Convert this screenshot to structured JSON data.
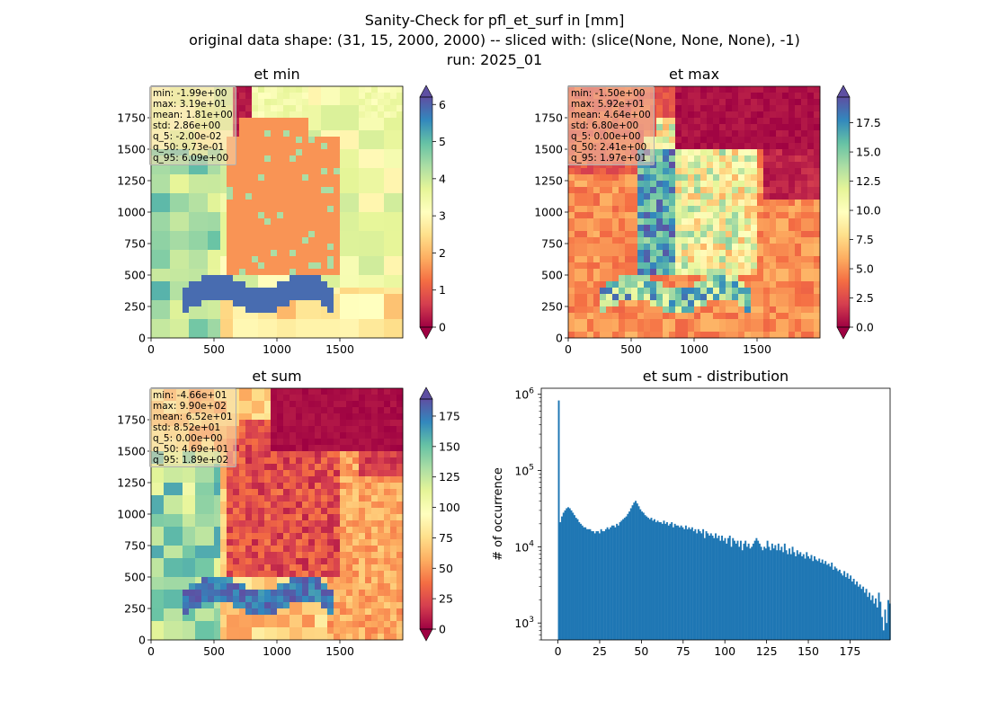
{
  "figure": {
    "title_lines": [
      "Sanity-Check for pfl_et_surf in [mm]",
      "original data shape: (31, 15, 2000, 2000) -- sliced with: (slice(None, None, None), -1)",
      "run: 2025_01"
    ]
  },
  "colors": {
    "spectral_stops": [
      "#9e0142",
      "#d53e4f",
      "#f46d43",
      "#fdae61",
      "#fee08b",
      "#ffffbf",
      "#e6f598",
      "#abdda4",
      "#66c2a5",
      "#3288bd",
      "#5e4fa2"
    ],
    "hist_bar": "#1f77b4",
    "stats_box_bg": "#f5deb3"
  },
  "chart_data": [
    {
      "type": "heatmap",
      "title": "et min",
      "colormap": "Spectral",
      "x_ticks": [
        "0",
        "500",
        "1000",
        "1500"
      ],
      "y_ticks": [
        "0",
        "250",
        "500",
        "750",
        "1000",
        "1250",
        "1500",
        "1750"
      ],
      "x_range": [
        0,
        2000
      ],
      "y_range": [
        0,
        2000
      ],
      "colorbar": {
        "range": [
          0,
          6.2
        ],
        "ticks": [
          "0",
          "1",
          "2",
          "3",
          "4",
          "5",
          "6"
        ],
        "extend": "both"
      },
      "stats": [
        "min: -1.99e+00",
        "max: 3.19e+01",
        "mean: 1.81e+00",
        "std: 2.86e+00",
        "q_5: -2.00e-02",
        "q_50: 9.73e-01",
        "q_95: 6.09e+00"
      ]
    },
    {
      "type": "heatmap",
      "title": "et max",
      "colormap": "Spectral",
      "x_ticks": [
        "0",
        "500",
        "1000",
        "1500"
      ],
      "y_ticks": [
        "0",
        "250",
        "500",
        "750",
        "1000",
        "1250",
        "1500",
        "1750"
      ],
      "x_range": [
        0,
        2000
      ],
      "y_range": [
        0,
        2000
      ],
      "colorbar": {
        "range": [
          0,
          19.7
        ],
        "ticks": [
          "0.0",
          "2.5",
          "5.0",
          "7.5",
          "10.0",
          "12.5",
          "15.0",
          "17.5"
        ],
        "extend": "both"
      },
      "stats": [
        "min: -1.50e+00",
        "max: 5.92e+01",
        "mean: 4.64e+00",
        "std: 6.80e+00",
        "q_5: 0.00e+00",
        "q_50: 2.41e+00",
        "q_95: 1.97e+01"
      ]
    },
    {
      "type": "heatmap",
      "title": "et sum",
      "colormap": "Spectral",
      "x_ticks": [
        "0",
        "500",
        "1000",
        "1500"
      ],
      "y_ticks": [
        "0",
        "250",
        "500",
        "750",
        "1000",
        "1250",
        "1500",
        "1750"
      ],
      "x_range": [
        0,
        2000
      ],
      "y_range": [
        0,
        2000
      ],
      "colorbar": {
        "range": [
          0,
          189
        ],
        "ticks": [
          "0",
          "25",
          "50",
          "75",
          "100",
          "125",
          "150",
          "175"
        ],
        "extend": "both"
      },
      "stats": [
        "min: -4.66e+01",
        "max: 9.90e+02",
        "mean: 6.52e+01",
        "std: 8.52e+01",
        "q_5: 0.00e+00",
        "q_50: 4.69e+01",
        "q_95: 1.89e+02"
      ]
    },
    {
      "type": "bar",
      "title": "et sum - distribution",
      "ylabel": "# of occurrence",
      "yscale": "log",
      "xlim": [
        -10,
        199
      ],
      "ylim": [
        600,
        1200000
      ],
      "x_ticks": [
        "0",
        "25",
        "50",
        "75",
        "100",
        "125",
        "150",
        "175"
      ],
      "y_ticks": [
        "10^3",
        "10^4",
        "10^5",
        "10^6"
      ],
      "bin_start": 0,
      "bin_width": 0.94,
      "values": [
        830000,
        21000,
        25000,
        28000,
        30000,
        32000,
        33000,
        32000,
        30000,
        28000,
        26000,
        24000,
        23000,
        21000,
        20000,
        19000,
        18000,
        18000,
        17000,
        17000,
        17000,
        16000,
        16000,
        15000,
        16000,
        16000,
        15000,
        17000,
        16000,
        16000,
        17000,
        18000,
        17000,
        18000,
        19000,
        19000,
        18000,
        20000,
        19000,
        21000,
        22000,
        23000,
        24000,
        25000,
        27000,
        29000,
        32000,
        35000,
        38000,
        40000,
        37000,
        34000,
        31000,
        29000,
        28000,
        26000,
        25000,
        24000,
        23000,
        24000,
        22000,
        23000,
        21000,
        22000,
        21000,
        21000,
        20000,
        22000,
        20000,
        21000,
        19000,
        20000,
        21000,
        18000,
        20000,
        19000,
        19000,
        18000,
        19000,
        18000,
        17000,
        19000,
        17000,
        18000,
        17000,
        18000,
        16000,
        17000,
        15000,
        17000,
        16000,
        15000,
        17000,
        13000,
        16000,
        15000,
        14000,
        15000,
        14000,
        13000,
        15000,
        13000,
        14000,
        12000,
        14000,
        12000,
        13000,
        11000,
        13000,
        14000,
        10000,
        13000,
        12000,
        11000,
        12000,
        10000,
        12000,
        9000,
        11000,
        12000,
        10000,
        11000,
        9500,
        10000,
        11000,
        12000,
        13000,
        12000,
        11000,
        10000,
        9000,
        10000,
        9500,
        12000,
        10000,
        9000,
        11000,
        9500,
        10500,
        9000,
        11000,
        9000,
        10000,
        8500,
        11000,
        9000,
        8000,
        9500,
        8000,
        10000,
        8500,
        7500,
        9000,
        8000,
        8500,
        7500,
        8000,
        7000,
        8500,
        7500,
        7000,
        7800,
        6500,
        7500,
        6800,
        6500,
        7000,
        6200,
        6800,
        6000,
        6500,
        5800,
        6000,
        5500,
        6200,
        5000,
        5500,
        5200,
        4800,
        5000,
        4500,
        4200,
        4800,
        4000,
        4500,
        3800,
        4200,
        3500,
        3800,
        3200,
        3500,
        3000,
        3200,
        2800,
        3000,
        2500,
        2800,
        2200,
        2500,
        2000,
        2300,
        1800,
        2100,
        1600,
        2500,
        1900,
        1200,
        800,
        1500,
        1000,
        2000,
        1800
      ]
    }
  ]
}
